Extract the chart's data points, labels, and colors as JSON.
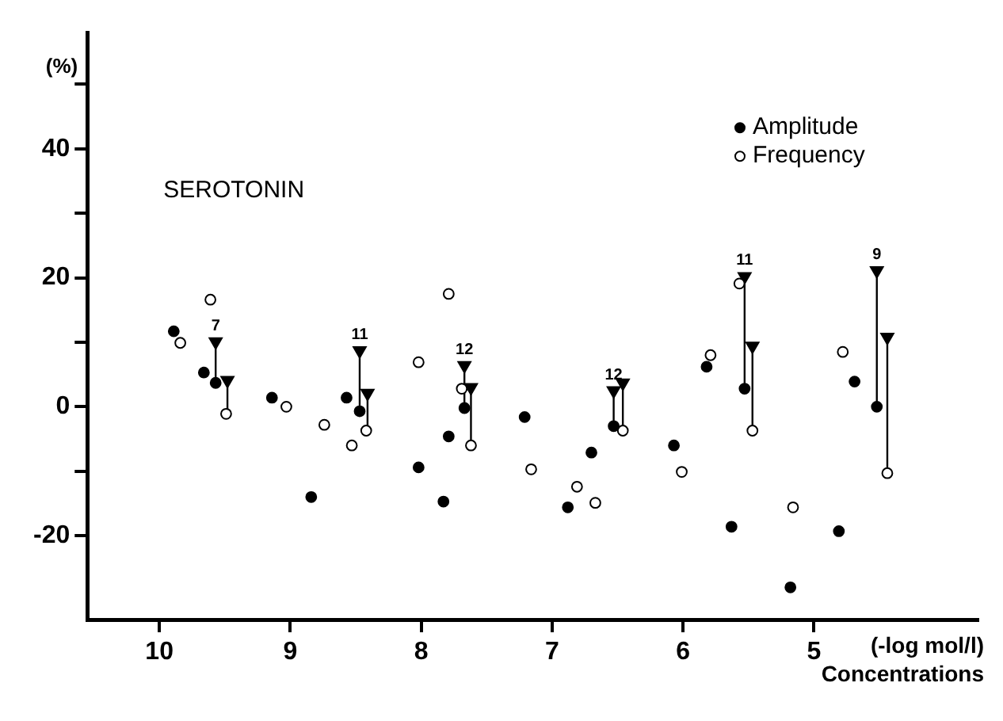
{
  "chart_data": {
    "type": "scatter",
    "title": "SEROTONIN",
    "ylabel": "(%)",
    "xlabel": "Concentrations",
    "xlim": [
      10.55,
      3.75
    ],
    "xticks": [
      10,
      9,
      8,
      7,
      6,
      5
    ],
    "ylim": [
      -33,
      58
    ],
    "yticks": [
      -20,
      {
        "value": -10,
        "label": null
      },
      0,
      {
        "value": 10,
        "label": null
      },
      20,
      {
        "value": 30,
        "label": null
      },
      40,
      {
        "value": 50,
        "label": null
      }
    ],
    "grid": false,
    "legend": "top right",
    "series": [
      {
        "name": "Amplitude",
        "color": "#000000",
        "marker": "circle",
        "x": [
          9.89,
          9.66,
          9.57,
          9.14,
          8.84,
          8.57,
          8.47,
          8.02,
          7.83,
          7.79,
          7.67,
          7.21,
          6.88,
          6.7,
          6.53,
          6.07,
          5.63,
          5.82,
          5.53,
          5.18,
          4.81,
          4.69,
          4.52
        ],
        "values": [
          11.7,
          5.3,
          3.7,
          1.4,
          -14,
          1.4,
          -0.7,
          -9.4,
          -14.7,
          -4.6,
          -0.2,
          -1.6,
          -15.6,
          -7.1,
          -3,
          -6,
          -18.6,
          6.2,
          2.8,
          -28,
          -19.3,
          3.9,
          0
        ]
      },
      {
        "name": "Frequency",
        "color": "#ffffff",
        "marker": "circle",
        "x": [
          9.84,
          9.61,
          9.49,
          9.03,
          8.74,
          8.53,
          8.42,
          8.02,
          7.79,
          7.69,
          7.62,
          7.16,
          6.81,
          6.67,
          6.46,
          6.01,
          5.79,
          5.57,
          5.47,
          5.16,
          4.78,
          4.44
        ],
        "values": [
          9.9,
          16.6,
          -1.1,
          0,
          -2.8,
          -6,
          -3.7,
          6.9,
          17.5,
          2.8,
          -6,
          -9.7,
          -12.4,
          -14.9,
          -3.7,
          -10.1,
          8,
          19.1,
          -3.7,
          -15.6,
          8.5,
          -10.3
        ]
      },
      {
        "color": "#000000",
        "marker": "triangle",
        "x": [
          9.57,
          9.48,
          8.47,
          8.41,
          7.67,
          7.62,
          6.53,
          6.46,
          5.53,
          5.47,
          4.52,
          4.44
        ],
        "values": [
          10.1,
          4.1,
          8.7,
          2.1,
          6.4,
          3,
          2.5,
          3.7,
          20.2,
          9.4,
          21.1,
          10.8
        ],
        "errors": [
          [
            3.7,
            10.1
          ],
          [
            -1.1,
            4.1
          ],
          [
            -0.7,
            8.7
          ],
          [
            -3.7,
            2.1
          ],
          [
            -0.2,
            6.4
          ],
          [
            -6,
            3
          ],
          [
            -3,
            2.5
          ],
          [
            -3.7,
            3.7
          ],
          [
            2.8,
            20.2
          ],
          [
            -3.7,
            9.4
          ],
          [
            0,
            21.1
          ],
          [
            -10.3,
            10.8
          ]
        ]
      }
    ],
    "annotations": [
      {
        "text": "7",
        "x": 9.57,
        "y": 10.1
      },
      {
        "text": "11",
        "x": 8.47,
        "y": 8.7
      },
      {
        "text": "12",
        "x": 7.67,
        "y": 6.4
      },
      {
        "text": "12",
        "x": 6.53,
        "y": 2.5
      },
      {
        "text": "11",
        "x": 5.53,
        "y": 20.2
      },
      {
        "text": "9",
        "x": 4.52,
        "y": 21.1
      },
      "(-log mol/l)"
    ]
  }
}
